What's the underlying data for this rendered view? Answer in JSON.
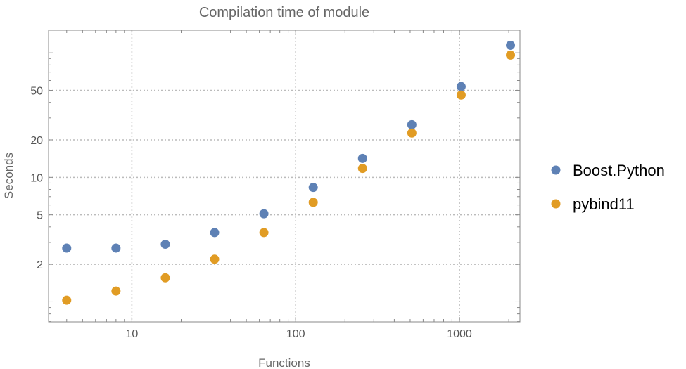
{
  "chart_data": {
    "type": "scatter",
    "title": "Compilation time of module",
    "xlabel": "Functions",
    "ylabel": "Seconds",
    "xscale": "log",
    "yscale": "log",
    "xlim": [
      3.1,
      2340
    ],
    "ylim": [
      0.69,
      152
    ],
    "grid": true,
    "legend_position": "right",
    "x_ticks": [
      10,
      100,
      1000
    ],
    "x_tick_labels": [
      "10",
      "100",
      "1000"
    ],
    "y_ticks": [
      2,
      5,
      10,
      20,
      50
    ],
    "y_tick_labels": [
      "2",
      "5",
      "10",
      "20",
      "50"
    ],
    "x": [
      4,
      8,
      16,
      32,
      64,
      128,
      256,
      512,
      1024,
      2048
    ],
    "series": [
      {
        "name": "Boost.Python",
        "color": "#5E81B5",
        "values": [
          2.7,
          2.7,
          2.9,
          3.6,
          5.1,
          8.3,
          14.2,
          26.5,
          53.6,
          115
        ]
      },
      {
        "name": "pybind11",
        "color": "#E19C24",
        "values": [
          1.03,
          1.22,
          1.56,
          2.2,
          3.6,
          6.3,
          11.8,
          22.7,
          45.8,
          96
        ]
      }
    ]
  }
}
